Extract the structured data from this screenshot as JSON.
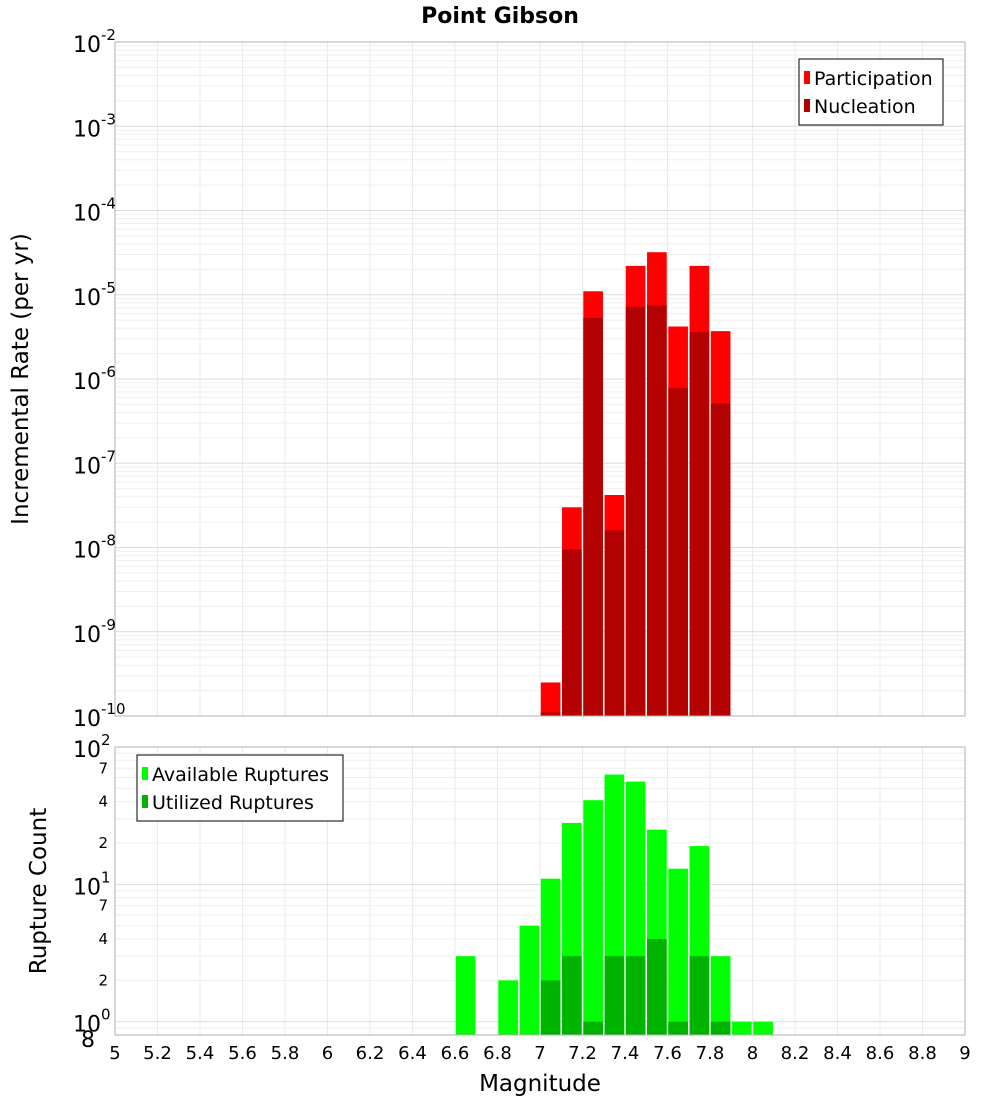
{
  "chart_data": [
    {
      "type": "bar",
      "title": "Point Gibson",
      "xlabel": "",
      "ylabel": "Incremental Rate (per yr)",
      "yscale": "log",
      "ylim": [
        1e-10,
        0.01
      ],
      "xlim": [
        5,
        9
      ],
      "y_tick_base": "10",
      "y_tick_exponents": [
        "-10",
        "-9",
        "-8",
        "-7",
        "-6",
        "-5",
        "-4",
        "-3",
        "-2"
      ],
      "grid": true,
      "legend_position": "top-right",
      "bar_width": 0.1,
      "series": [
        {
          "name": "Participation",
          "color": "#ff0000",
          "x": [
            7.05,
            7.15,
            7.25,
            7.35,
            7.45,
            7.55,
            7.65,
            7.75,
            7.85
          ],
          "values": [
            2.5e-10,
            3e-08,
            1.1e-05,
            4.2e-08,
            2.2e-05,
            3.2e-05,
            4.2e-06,
            2.2e-05,
            3.7e-06
          ]
        },
        {
          "name": "Nucleation",
          "color": "#b30000",
          "x": [
            7.05,
            7.15,
            7.25,
            7.35,
            7.45,
            7.55,
            7.65,
            7.75,
            7.85
          ],
          "values": [
            1.1e-10,
            9.5e-09,
            5.3e-06,
            1.6e-08,
            7.2e-06,
            7.5e-06,
            7.8e-07,
            3.6e-06,
            5.1e-07
          ]
        }
      ]
    },
    {
      "type": "bar",
      "title": "",
      "xlabel": "Magnitude",
      "ylabel": "Rupture Count",
      "yscale": "log",
      "ylim": [
        0.8,
        100
      ],
      "xlim": [
        5,
        9
      ],
      "x_ticks": [
        "5",
        "5.2",
        "5.4",
        "5.6",
        "5.8",
        "6",
        "6.2",
        "6.4",
        "6.6",
        "6.8",
        "7",
        "7.2",
        "7.4",
        "7.6",
        "7.8",
        "8",
        "8.2",
        "8.4",
        "8.6",
        "8.8",
        "9"
      ],
      "y_tick_base": "10",
      "y_tick_exponents": [
        "0",
        "1",
        "2"
      ],
      "y_minor_ticks": [
        "8",
        "2",
        "4",
        "7",
        "2",
        "4",
        "7"
      ],
      "grid": true,
      "legend_position": "top-left",
      "bar_width": 0.1,
      "series": [
        {
          "name": "Available Ruptures",
          "color": "#00ff00",
          "x": [
            6.65,
            6.85,
            6.95,
            7.05,
            7.15,
            7.25,
            7.35,
            7.45,
            7.55,
            7.65,
            7.75,
            7.85,
            7.95,
            8.05
          ],
          "values": [
            3,
            2,
            5,
            11,
            28,
            41,
            63,
            56,
            25,
            13,
            19,
            3,
            1,
            1
          ]
        },
        {
          "name": "Utilized Ruptures",
          "color": "#00b300",
          "x": [
            7.05,
            7.15,
            7.25,
            7.35,
            7.45,
            7.55,
            7.65,
            7.75,
            7.85
          ],
          "values": [
            2,
            3,
            1,
            3,
            3,
            4,
            1,
            3,
            1
          ]
        }
      ]
    }
  ]
}
